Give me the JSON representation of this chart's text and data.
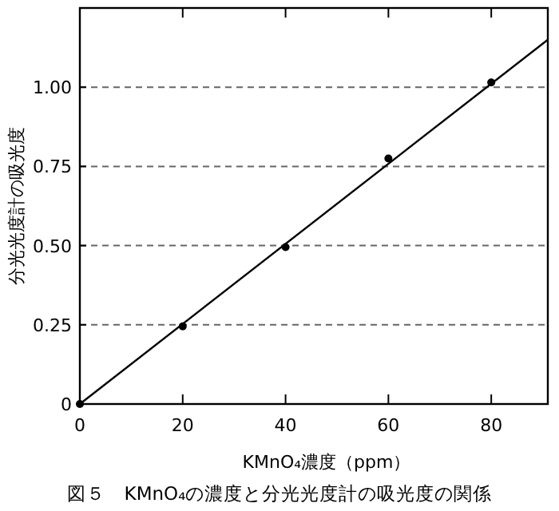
{
  "chart_data": {
    "type": "scatter",
    "xlabel": "KMnO₄濃度（ppm）",
    "ylabel": "分光光度計の吸光度",
    "annotations": [
      "図５　KMnO₄の濃度と分光光度計の吸光度の関係"
    ],
    "x": [
      0,
      20,
      40,
      60,
      80
    ],
    "series": [
      {
        "color": "#000000",
        "values": [
          0,
          0.245,
          0.495,
          0.775,
          1.015
        ],
        "marker": "circle"
      },
      {
        "type": "line",
        "color": "#000000",
        "x": [
          0,
          91
        ],
        "values": [
          0,
          1.15
        ],
        "line_style": "solid"
      }
    ],
    "xlim": [
      0,
      91
    ],
    "ylim": [
      0,
      1.25
    ],
    "xticks": [
      0,
      20,
      40,
      60,
      80
    ],
    "yticks": [
      0,
      {
        "value": 0.25,
        "label": "0.25"
      },
      {
        "value": 0.5,
        "label": "0.50"
      },
      {
        "value": 0.75,
        "label": "0.75"
      },
      {
        "value": 1,
        "label": "1.00"
      }
    ],
    "grid": "y"
  }
}
